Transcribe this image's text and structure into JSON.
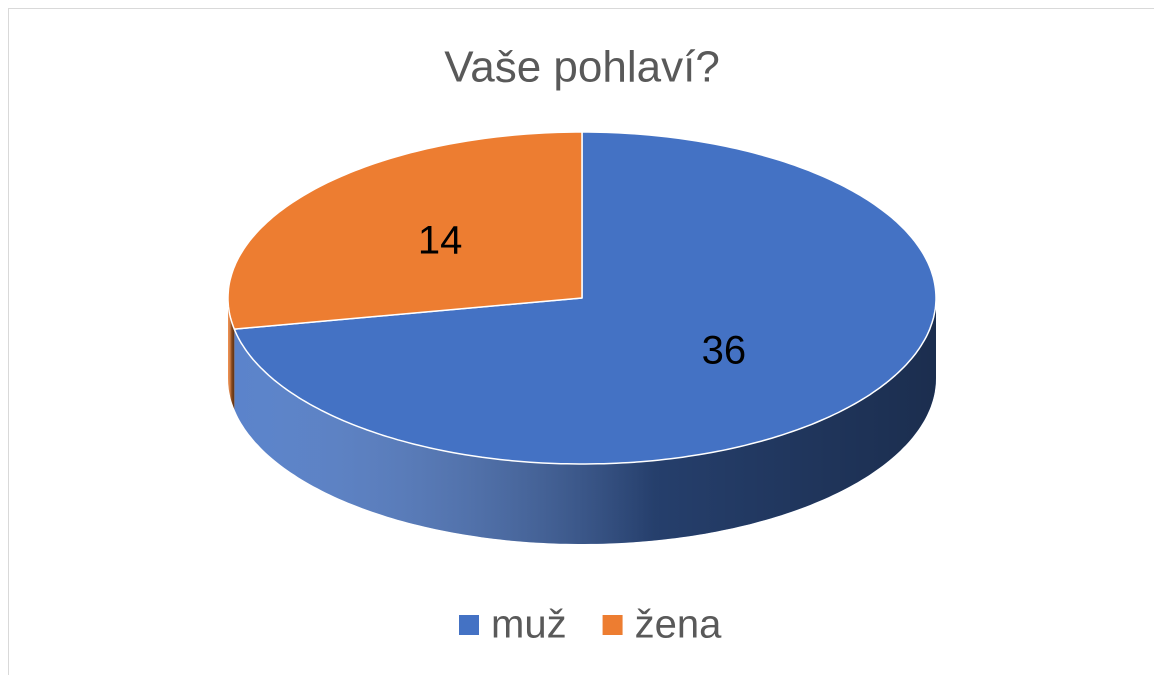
{
  "chart_data": {
    "type": "pie",
    "title": "Vaše pohlaví?",
    "categories": [
      "muž",
      "žena"
    ],
    "values": [
      36,
      14
    ],
    "colors": [
      "#4472c4",
      "#ed7d31"
    ],
    "legend": "bottom"
  }
}
